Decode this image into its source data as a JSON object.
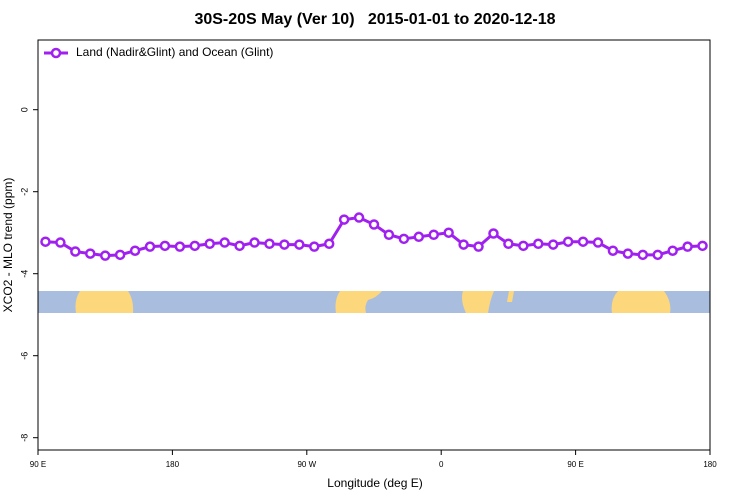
{
  "chart_data": {
    "type": "line",
    "title": "30S-20S May (Ver 10)   2015-01-01 to 2020-12-18",
    "x_label": "Longitude (deg E)",
    "y_label": "XCO2 - MLO trend (ppm)",
    "xlim": [
      90,
      540
    ],
    "ylim": [
      -8.3,
      1.7
    ],
    "xticks": [
      {
        "value": 90,
        "label": "90 E"
      },
      180,
      {
        "value": 270,
        "label": "90 W"
      },
      {
        "value": 360,
        "label": "0"
      },
      {
        "value": 450,
        "label": "90 E"
      },
      {
        "value": 540,
        "label": "180"
      }
    ],
    "yticks": [
      0,
      -2,
      -4,
      -6,
      -8
    ],
    "legend": "top-left",
    "x": [
      95,
      105,
      115,
      125,
      135,
      145,
      155,
      165,
      175,
      185,
      195,
      205,
      215,
      225,
      235,
      245,
      255,
      265,
      275,
      285,
      295,
      305,
      315,
      325,
      335,
      345,
      355,
      365,
      375,
      385,
      395,
      405,
      415,
      425,
      435,
      445,
      455,
      465,
      475,
      485,
      495,
      505,
      515,
      525,
      535
    ],
    "series": [
      {
        "name": "Land (Nadir&Glint) and Ocean (Glint)",
        "color": "#a020f0",
        "values": [
          -3.22,
          -3.24,
          -3.46,
          -3.51,
          -3.56,
          -3.54,
          -3.44,
          -3.34,
          -3.32,
          -3.34,
          -3.32,
          -3.27,
          -3.24,
          -3.32,
          -3.24,
          -3.27,
          -3.29,
          -3.29,
          -3.34,
          -3.27,
          -2.68,
          -2.63,
          -2.8,
          -3.05,
          -3.15,
          -3.1,
          -3.05,
          -3.0,
          -3.29,
          -3.34,
          -3.02,
          -3.27,
          -3.32,
          -3.27,
          -3.29,
          -3.22,
          -3.22,
          -3.24,
          -3.44,
          -3.51,
          -3.54,
          -3.54,
          -3.44,
          -3.34,
          -3.32
        ]
      }
    ]
  }
}
